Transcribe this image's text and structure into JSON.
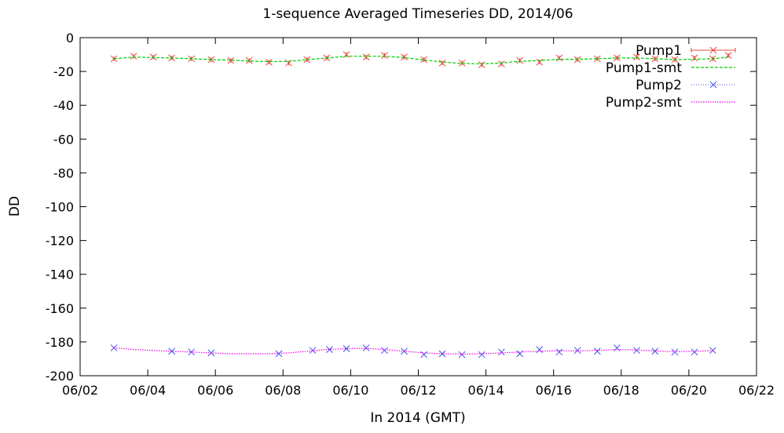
{
  "chart_data": {
    "type": "line",
    "title": "1-sequence Averaged Timeseries DD, 2014/06",
    "xlabel": "In 2014 (GMT)",
    "ylabel": "DD",
    "xlim": [
      "2014-06-02",
      "2014-06-22"
    ],
    "ylim": [
      -200,
      0
    ],
    "x_ticks": [
      "06/02",
      "06/04",
      "06/06",
      "06/08",
      "06/10",
      "06/12",
      "06/14",
      "06/16",
      "06/18",
      "06/20",
      "06/22"
    ],
    "y_ticks": [
      "0",
      "-20",
      "-40",
      "-60",
      "-80",
      "-100",
      "-120",
      "-140",
      "-160",
      "-180",
      "-200"
    ],
    "legend_position": "top-right",
    "grid": false,
    "series": [
      {
        "name": "Pump1",
        "style": "points-errorbars",
        "marker": "x",
        "color": "#e8483c",
        "x": [
          "2014-06-03 00:00",
          "2014-06-03 14:00",
          "2014-06-04 04:00",
          "2014-06-04 17:00",
          "2014-06-05 07:00",
          "2014-06-05 21:00",
          "2014-06-06 11:00",
          "2014-06-07 00:00",
          "2014-06-07 14:00",
          "2014-06-08 04:00",
          "2014-06-08 17:00",
          "2014-06-09 07:00",
          "2014-06-09 21:00",
          "2014-06-10 11:00",
          "2014-06-11 00:00",
          "2014-06-11 14:00",
          "2014-06-12 04:00",
          "2014-06-12 17:00",
          "2014-06-13 07:00",
          "2014-06-13 21:00",
          "2014-06-14 11:00",
          "2014-06-15 00:00",
          "2014-06-15 14:00",
          "2014-06-16 04:00",
          "2014-06-16 17:00",
          "2014-06-17 07:00",
          "2014-06-17 21:00",
          "2014-06-18 11:00",
          "2014-06-19 00:00",
          "2014-06-19 14:00",
          "2014-06-20 04:00",
          "2014-06-20 17:00",
          "2014-06-21 04:00"
        ],
        "y": [
          -12.5,
          -11.0,
          -11.5,
          -12.0,
          -12.5,
          -13.0,
          -13.5,
          -13.5,
          -14.5,
          -15.0,
          -13.0,
          -12.0,
          -10.0,
          -11.5,
          -10.5,
          -11.5,
          -13.0,
          -15.0,
          -15.0,
          -16.0,
          -15.5,
          -13.5,
          -14.5,
          -12.0,
          -13.0,
          -12.5,
          -12.0,
          -11.5,
          -12.5,
          -13.0,
          -12.0,
          -12.5,
          -10.5
        ]
      },
      {
        "name": "Pump1-smt",
        "style": "dashed-line",
        "color": "#00cc00",
        "x": [
          "2014-06-03 00:00",
          "2014-06-03 14:00",
          "2014-06-04 04:00",
          "2014-06-04 17:00",
          "2014-06-05 07:00",
          "2014-06-05 21:00",
          "2014-06-06 11:00",
          "2014-06-07 00:00",
          "2014-06-07 14:00",
          "2014-06-08 04:00",
          "2014-06-08 17:00",
          "2014-06-09 07:00",
          "2014-06-09 21:00",
          "2014-06-10 11:00",
          "2014-06-11 00:00",
          "2014-06-11 14:00",
          "2014-06-12 04:00",
          "2014-06-12 17:00",
          "2014-06-13 07:00",
          "2014-06-13 21:00",
          "2014-06-14 11:00",
          "2014-06-15 00:00",
          "2014-06-15 14:00",
          "2014-06-16 04:00",
          "2014-06-16 17:00",
          "2014-06-17 07:00",
          "2014-06-17 21:00",
          "2014-06-18 11:00",
          "2014-06-19 00:00",
          "2014-06-19 14:00",
          "2014-06-20 04:00",
          "2014-06-20 17:00",
          "2014-06-21 04:00"
        ],
        "y": [
          -12.5,
          -11.5,
          -11.8,
          -12.0,
          -12.5,
          -13.0,
          -13.3,
          -13.8,
          -14.2,
          -14.0,
          -13.0,
          -12.0,
          -11.0,
          -11.0,
          -11.0,
          -11.8,
          -13.2,
          -14.5,
          -15.2,
          -15.5,
          -15.0,
          -14.0,
          -13.5,
          -12.8,
          -12.8,
          -12.5,
          -12.0,
          -12.0,
          -12.5,
          -13.0,
          -12.8,
          -12.5,
          -11.5
        ]
      },
      {
        "name": "Pump2",
        "style": "points",
        "marker": "x",
        "color": "#3c50e8",
        "x": [
          "2014-06-03 00:00",
          "2014-06-04 17:00",
          "2014-06-05 07:00",
          "2014-06-05 21:00",
          "2014-06-07 21:00",
          "2014-06-08 21:00",
          "2014-06-09 09:00",
          "2014-06-09 21:00",
          "2014-06-10 11:00",
          "2014-06-11 00:00",
          "2014-06-11 14:00",
          "2014-06-12 04:00",
          "2014-06-12 17:00",
          "2014-06-13 07:00",
          "2014-06-13 21:00",
          "2014-06-14 11:00",
          "2014-06-15 00:00",
          "2014-06-15 14:00",
          "2014-06-16 04:00",
          "2014-06-16 17:00",
          "2014-06-17 07:00",
          "2014-06-17 21:00",
          "2014-06-18 11:00",
          "2014-06-19 00:00",
          "2014-06-19 14:00",
          "2014-06-20 04:00",
          "2014-06-20 17:00"
        ],
        "y": [
          -183.5,
          -185.5,
          -186.0,
          -186.5,
          -187.0,
          -185.0,
          -184.5,
          -184.0,
          -183.5,
          -185.0,
          -185.5,
          -187.5,
          -187.0,
          -187.5,
          -187.5,
          -186.0,
          -187.0,
          -184.5,
          -186.0,
          -185.0,
          -185.5,
          -183.5,
          -185.0,
          -185.5,
          -186.0,
          -186.0,
          -185.0
        ]
      },
      {
        "name": "Pump2-smt",
        "style": "dotted-line",
        "color": "#ee00ee",
        "x": [
          "2014-06-03 00:00",
          "2014-06-03 14:00",
          "2014-06-04 04:00",
          "2014-06-04 17:00",
          "2014-06-05 07:00",
          "2014-06-05 21:00",
          "2014-06-06 11:00",
          "2014-06-07 00:00",
          "2014-06-07 14:00",
          "2014-06-08 04:00",
          "2014-06-08 17:00",
          "2014-06-09 07:00",
          "2014-06-09 21:00",
          "2014-06-10 11:00",
          "2014-06-11 00:00",
          "2014-06-11 14:00",
          "2014-06-12 04:00",
          "2014-06-12 17:00",
          "2014-06-13 07:00",
          "2014-06-13 21:00",
          "2014-06-14 11:00",
          "2014-06-15 00:00",
          "2014-06-15 14:00",
          "2014-06-16 04:00",
          "2014-06-16 17:00",
          "2014-06-17 07:00",
          "2014-06-17 21:00",
          "2014-06-18 11:00",
          "2014-06-19 00:00",
          "2014-06-19 14:00",
          "2014-06-20 04:00",
          "2014-06-20 17:00"
        ],
        "y": [
          -183.5,
          -184.5,
          -185.0,
          -185.5,
          -186.0,
          -186.5,
          -187.0,
          -187.0,
          -187.0,
          -186.5,
          -185.5,
          -184.5,
          -184.0,
          -183.8,
          -184.5,
          -185.5,
          -186.5,
          -187.0,
          -187.2,
          -187.0,
          -186.5,
          -186.0,
          -185.5,
          -185.2,
          -185.3,
          -185.0,
          -184.5,
          -184.8,
          -185.3,
          -185.8,
          -185.5,
          -185.2
        ]
      }
    ]
  }
}
